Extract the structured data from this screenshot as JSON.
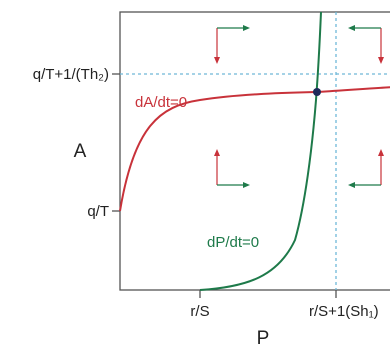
{
  "axes": {
    "x_label": "P",
    "y_label": "A",
    "x_ticks": [
      "r/S",
      "r/S+1(Sh₁)"
    ],
    "y_ticks": [
      "q/T+1/(Th₂)",
      "q/T"
    ]
  },
  "curves": {
    "a_nullcline": {
      "label": "dA/dt=0",
      "color": "#c8323a"
    },
    "p_nullcline": {
      "label": "dP/dt=0",
      "color": "#1e7a4a"
    }
  },
  "guides": {
    "color": "#6fb8d8"
  },
  "equilibrium": {
    "color": "#1f2a5a"
  },
  "arrows": {
    "up_down_color": "#c8323a",
    "left_right_color": "#1e7a4a"
  }
}
